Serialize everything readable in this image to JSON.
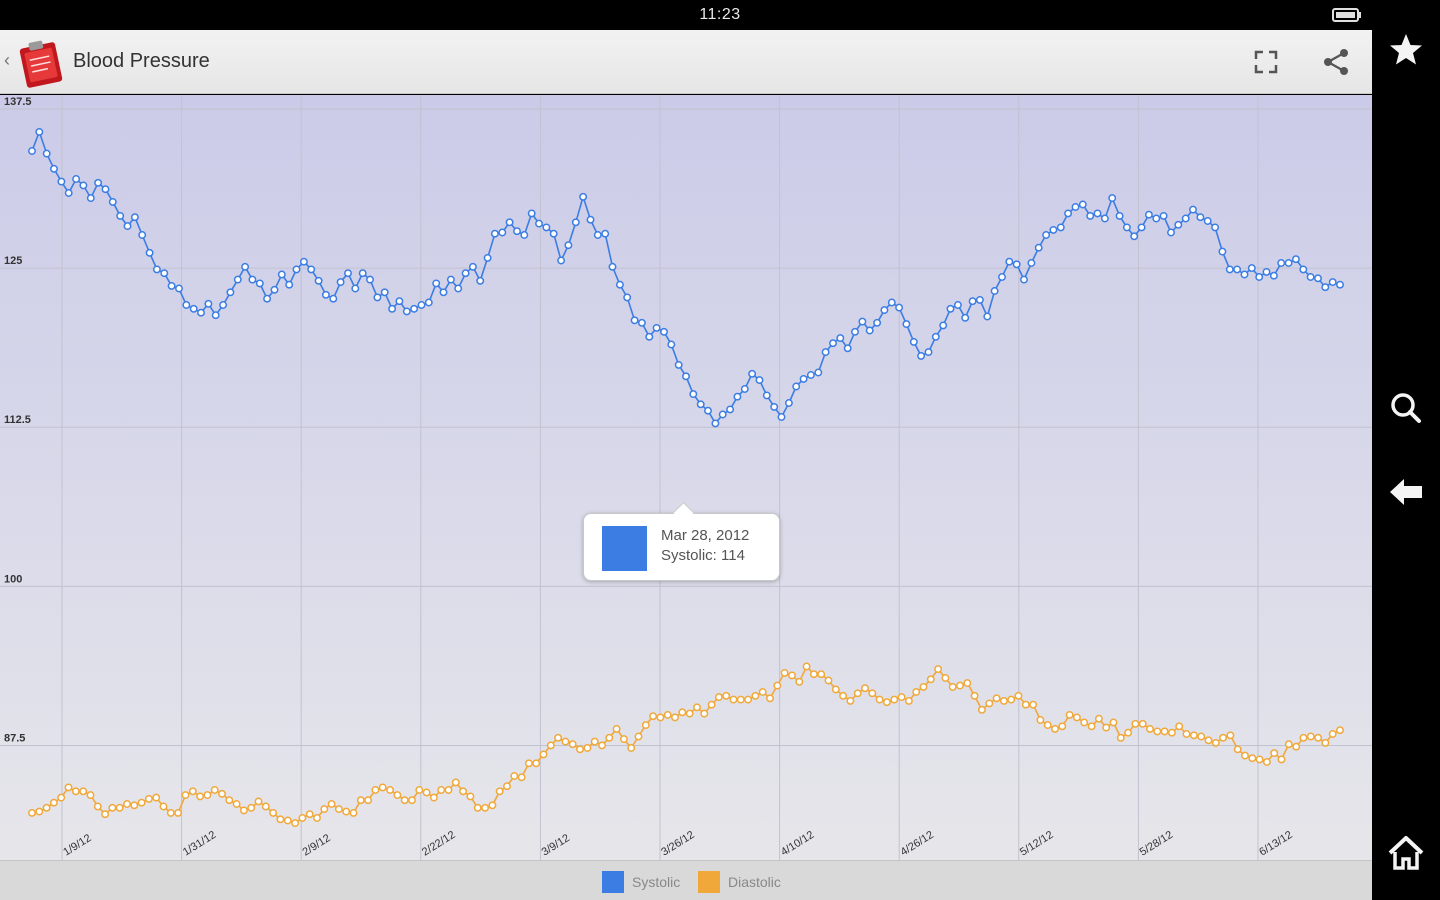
{
  "status_bar": {
    "time": "11:23",
    "battery_icon": "battery-icon"
  },
  "action_bar": {
    "back_glyph": "‹",
    "title": "Blood Pressure",
    "app_icon": "clipboard-app-icon",
    "actions": [
      "fullscreen-icon",
      "share-icon"
    ]
  },
  "nav_bar": {
    "buttons": [
      "star-icon",
      "search-icon",
      "back-arrow-icon",
      "home-icon"
    ]
  },
  "tooltip": {
    "date": "Mar 28, 2012",
    "value": "Systolic: 114",
    "color": "#3b7de3"
  },
  "colors": {
    "systolic": "#3b7de3",
    "diastolic": "#f0a83a",
    "plot_bg_top": "#cbcbe9",
    "plot_bg_bottom": "#e6e6ea",
    "grid": "#c2c2cf"
  },
  "chart_data": {
    "type": "line",
    "x_ticks": [
      "1/9/12",
      "1/31/12",
      "2/9/12",
      "2/22/12",
      "3/9/12",
      "3/26/12",
      "4/10/12",
      "4/26/12",
      "5/12/12",
      "5/28/12",
      "6/13/12"
    ],
    "y_ticks": [
      "137.5",
      "125",
      "112.5",
      "100",
      "87.5"
    ],
    "ylim": [
      78.5,
      138.6
    ],
    "grid": true,
    "legend_position": "bottom",
    "series": [
      {
        "name": "Systolic",
        "color": "#3b7de3",
        "values": [
          134.2,
          135.7,
          134.0,
          132.8,
          131.8,
          130.9,
          132.0,
          131.5,
          130.5,
          131.7,
          131.2,
          130.2,
          129.1,
          128.3,
          129.0,
          127.6,
          126.2,
          124.9,
          124.6,
          123.6,
          123.4,
          122.1,
          121.8,
          121.5,
          122.2,
          121.3,
          122.1,
          123.1,
          124.1,
          125.1,
          124.1,
          123.8,
          122.6,
          123.3,
          124.5,
          123.7,
          124.9,
          125.5,
          124.9,
          124.0,
          122.9,
          122.6,
          123.9,
          124.6,
          123.4,
          124.6,
          124.1,
          122.7,
          123.1,
          121.8,
          122.4,
          121.6,
          121.8,
          122.1,
          122.3,
          123.8,
          123.1,
          124.1,
          123.4,
          124.6,
          125.1,
          124.0,
          125.8,
          127.7,
          127.8,
          128.6,
          127.9,
          127.6,
          129.3,
          128.5,
          128.2,
          127.7,
          125.6,
          126.8,
          128.6,
          130.6,
          128.8,
          127.6,
          127.7,
          125.1,
          123.7,
          122.7,
          120.9,
          120.7,
          119.6,
          120.3,
          120.0,
          119.0,
          117.4,
          116.5,
          115.1,
          114.3,
          113.8,
          112.8,
          113.5,
          113.9,
          114.9,
          115.5,
          116.7,
          116.2,
          115.0,
          114.1,
          113.3,
          114.4,
          115.7,
          116.3,
          116.6,
          116.8,
          118.4,
          119.1,
          119.5,
          118.7,
          120.0,
          120.8,
          120.1,
          120.7,
          121.7,
          122.3,
          121.9,
          120.6,
          119.2,
          118.1,
          118.4,
          119.6,
          120.5,
          121.8,
          122.1,
          121.1,
          122.4,
          122.5,
          121.2,
          123.2,
          124.3,
          125.5,
          125.3,
          124.1,
          125.4,
          126.6,
          127.6,
          128.0,
          128.2,
          129.3,
          129.8,
          130.0,
          129.1,
          129.3,
          128.9,
          130.5,
          129.1,
          128.2,
          127.5,
          128.2,
          129.2,
          128.9,
          129.1,
          127.8,
          128.4,
          128.9,
          129.6,
          129.0,
          128.7,
          128.2,
          126.3,
          124.9,
          124.9,
          124.5,
          125.0,
          124.3,
          124.7,
          124.4,
          125.4,
          125.4,
          125.7,
          124.9,
          124.3,
          124.2,
          123.5,
          123.9,
          123.7
        ],
        "x_range": [
          "Jan 2012",
          "Jun 2012"
        ]
      },
      {
        "name": "Diastolic",
        "color": "#f0a83a",
        "values": [
          82.2,
          82.3,
          82.6,
          83.0,
          83.4,
          84.2,
          83.9,
          83.9,
          83.6,
          82.7,
          82.1,
          82.6,
          82.6,
          82.9,
          82.8,
          83.0,
          83.3,
          83.4,
          82.7,
          82.2,
          82.2,
          83.6,
          83.9,
          83.5,
          83.6,
          84.0,
          83.7,
          83.2,
          82.9,
          82.4,
          82.6,
          83.1,
          82.7,
          82.2,
          81.7,
          81.6,
          81.4,
          81.8,
          82.1,
          81.8,
          82.5,
          82.9,
          82.5,
          82.3,
          82.2,
          83.2,
          83.2,
          84.0,
          84.2,
          84.0,
          83.6,
          83.2,
          83.2,
          84.0,
          83.8,
          83.4,
          84.0,
          84.0,
          84.6,
          83.9,
          83.5,
          82.6,
          82.6,
          82.8,
          83.9,
          84.3,
          85.1,
          85.0,
          86.1,
          86.1,
          86.8,
          87.5,
          88.1,
          87.8,
          87.6,
          87.2,
          87.3,
          87.8,
          87.5,
          88.1,
          88.8,
          88.0,
          87.3,
          88.2,
          89.1,
          89.8,
          89.7,
          89.9,
          89.7,
          90.1,
          90.0,
          90.5,
          90.0,
          90.7,
          91.3,
          91.4,
          91.1,
          91.1,
          91.1,
          91.4,
          91.7,
          91.2,
          92.2,
          93.2,
          93.0,
          92.5,
          93.7,
          93.1,
          93.1,
          92.6,
          91.9,
          91.4,
          91.0,
          91.6,
          92.0,
          91.6,
          91.1,
          90.9,
          91.1,
          91.3,
          91.0,
          91.7,
          92.1,
          92.7,
          93.5,
          92.8,
          92.1,
          92.2,
          92.4,
          91.4,
          90.3,
          90.8,
          91.2,
          91.0,
          91.1,
          91.4,
          90.7,
          90.7,
          89.5,
          89.1,
          88.8,
          89.0,
          89.9,
          89.7,
          89.3,
          89.0,
          89.6,
          88.9,
          89.3,
          88.1,
          88.5,
          89.2,
          89.2,
          88.8,
          88.6,
          88.6,
          88.5,
          89.0,
          88.4,
          88.3,
          88.2,
          87.9,
          87.7,
          88.1,
          88.3,
          87.2,
          86.7,
          86.5,
          86.4,
          86.2,
          86.9,
          86.4,
          87.6,
          87.4,
          88.1,
          88.2,
          88.1,
          87.7,
          88.4,
          88.7
        ],
        "x_range": [
          "Jan 2012",
          "Jun 2012"
        ]
      }
    ]
  },
  "legend": [
    {
      "label": "Systolic",
      "color": "#3b7de3"
    },
    {
      "label": "Diastolic",
      "color": "#f0a83a"
    }
  ]
}
